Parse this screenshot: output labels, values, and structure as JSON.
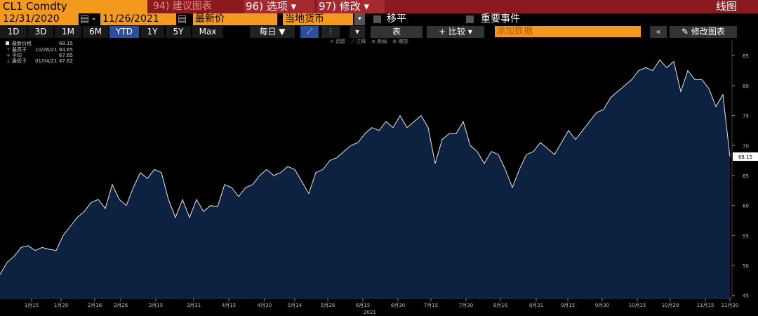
{
  "header": {
    "ticker": "CL1 Comdty",
    "menu": [
      "94) 建议图表",
      "96) 选项",
      "97) 修改"
    ],
    "chart_kind": "线图"
  },
  "controls": {
    "start_date": "12/31/2020",
    "separator": "-",
    "end_date": "11/26/2021",
    "field": "最新价",
    "currency": "当地货币",
    "moving_avg": "移平",
    "events": "重要事件"
  },
  "toolbar": {
    "periods": [
      "1D",
      "3D",
      "1M",
      "6M",
      "YTD",
      "1Y",
      "5Y",
      "Max"
    ],
    "frequency": "每日",
    "table": "表",
    "compare": "比较",
    "add_data": "添加数据",
    "edit_chart": "修改图表"
  },
  "tools": [
    "追踪",
    "注释",
    "新闻",
    "缩放"
  ],
  "chart_data": {
    "type": "area",
    "x_label": "2021",
    "line_color": "#e8e8e8",
    "fill_color": "#0c2240",
    "series": [
      {
        "name": "最新价格",
        "values": [
          48.5,
          50.5,
          51.5,
          53,
          53.3,
          52.5,
          53,
          52.7,
          52.5,
          55,
          56.5,
          58,
          59,
          60.5,
          61,
          59.5,
          63.5,
          61,
          60,
          63,
          65.5,
          64.5,
          66,
          65.5,
          61,
          58,
          61,
          58,
          61,
          59,
          60,
          59.8,
          63.5,
          63,
          61.5,
          63,
          63.5,
          65,
          66,
          65,
          65.5,
          66.5,
          66,
          64,
          62,
          65.5,
          66,
          67.5,
          68,
          69,
          70,
          70.5,
          72,
          73,
          72.5,
          74,
          73,
          75,
          73,
          74,
          75,
          73,
          67,
          71,
          72,
          72,
          74,
          70,
          69,
          67,
          69,
          68.5,
          66,
          63,
          66,
          68.5,
          69,
          70.5,
          69.5,
          68.5,
          70.5,
          72.5,
          71,
          72.5,
          74,
          75.5,
          76,
          78,
          79,
          80,
          81,
          82.5,
          83,
          82.5,
          84.3,
          83,
          84,
          79,
          82.5,
          81,
          81,
          79.5,
          76.5,
          78.5,
          68.15
        ]
      }
    ],
    "stats": [
      {
        "label": "最高于",
        "date": "10/26/21",
        "value": 84.65
      },
      {
        "label": "平均",
        "value": 67.65
      },
      {
        "label": "最低于",
        "date": "01/04/21",
        "value": 47.62
      }
    ],
    "xlim": [
      0,
      104
    ],
    "xticks": [
      {
        "value": 4.5,
        "label": "1月15"
      },
      {
        "value": 8.7,
        "label": "1月29"
      },
      {
        "value": 13.5,
        "label": "2月16"
      },
      {
        "value": 17.2,
        "label": "2月26"
      },
      {
        "value": 22.2,
        "label": "3月15"
      },
      {
        "value": 27.6,
        "label": "3月31"
      },
      {
        "value": 32.6,
        "label": "4月15"
      },
      {
        "value": 37.7,
        "label": "4月30"
      },
      {
        "value": 42,
        "label": "5月14"
      },
      {
        "value": 46.7,
        "label": "5月28"
      },
      {
        "value": 51.7,
        "label": "6月15"
      },
      {
        "value": 56.7,
        "label": "6月30"
      },
      {
        "value": 61.4,
        "label": "7月15"
      },
      {
        "value": 66.4,
        "label": "7月30"
      },
      {
        "value": 71.3,
        "label": "8月16"
      },
      {
        "value": 76.4,
        "label": "8月31"
      },
      {
        "value": 80.9,
        "label": "9月15"
      },
      {
        "value": 85.8,
        "label": "9月30"
      },
      {
        "value": 90.8,
        "label": "10月15"
      },
      {
        "value": 95.5,
        "label": "10月29"
      },
      {
        "value": 100.5,
        "label": "11月15"
      },
      {
        "value": 104,
        "label": "11月30"
      }
    ],
    "ylim": [
      44.5,
      87.6
    ],
    "yticks": [
      45,
      50,
      55,
      60,
      65,
      70,
      75,
      80,
      85
    ]
  }
}
